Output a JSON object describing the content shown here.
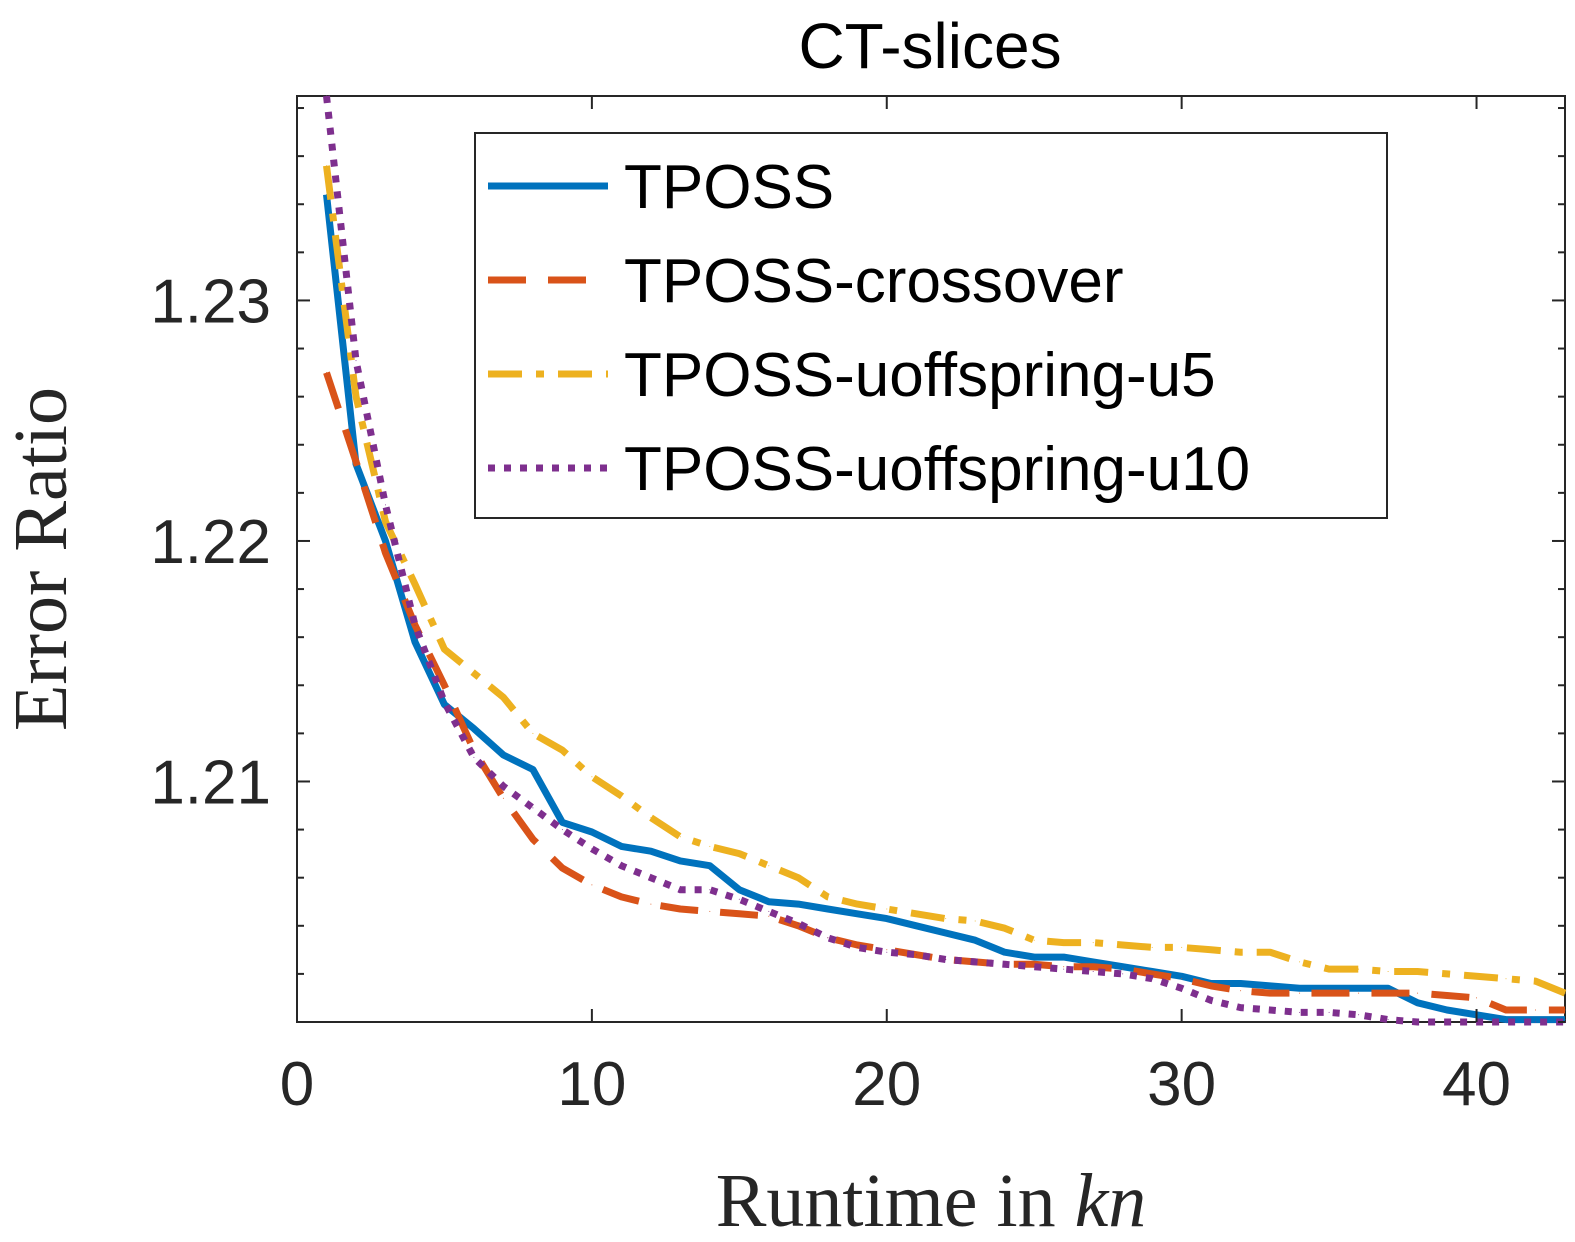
{
  "chart_data": {
    "type": "line",
    "title": "CT-slices",
    "xlabel": "Runtime in ",
    "xlabel_italic": "kn",
    "ylabel": "Error Ratio",
    "xlim": [
      0,
      43
    ],
    "ylim": [
      1.2,
      1.2385
    ],
    "xticks": [
      0,
      10,
      20,
      30,
      40
    ],
    "yticks": [
      1.21,
      1.22,
      1.23
    ],
    "ytick_labels": [
      "1.21",
      "1.22",
      "1.23"
    ],
    "grid": false,
    "legend_position": "top-right",
    "x": [
      1,
      2,
      3,
      4,
      5,
      6,
      7,
      8,
      9,
      10,
      11,
      12,
      13,
      14,
      15,
      16,
      17,
      18,
      19,
      20,
      21,
      22,
      23,
      24,
      25,
      26,
      27,
      28,
      29,
      30,
      31,
      32,
      33,
      34,
      35,
      36,
      37,
      38,
      39,
      40,
      41,
      42,
      43
    ],
    "series": [
      {
        "name": "TPOSS",
        "color": "#0072BD",
        "style": "solid",
        "values": [
          1.2344,
          1.2232,
          1.22,
          1.2158,
          1.2132,
          1.2122,
          1.2111,
          1.2105,
          1.2083,
          1.2079,
          1.2073,
          1.2071,
          1.2067,
          1.2065,
          1.2055,
          1.205,
          1.2049,
          1.2047,
          1.2045,
          1.2043,
          1.204,
          1.2037,
          1.2034,
          1.2029,
          1.2027,
          1.2027,
          1.2025,
          1.2023,
          1.2021,
          1.2019,
          1.2016,
          1.2016,
          1.2015,
          1.2014,
          1.2014,
          1.2014,
          1.2014,
          1.2008,
          1.2005,
          1.2003,
          1.2001,
          1.2001,
          1.2001
        ]
      },
      {
        "name": "TPOSS-crossover",
        "color": "#D95319",
        "style": "dashed",
        "values": [
          1.227,
          1.2233,
          1.2195,
          1.2165,
          1.214,
          1.2113,
          1.2093,
          1.2076,
          1.2064,
          1.2057,
          1.2052,
          1.2049,
          1.2047,
          1.2046,
          1.2045,
          1.2044,
          1.204,
          1.2035,
          1.2032,
          1.203,
          1.2028,
          1.2026,
          1.2025,
          1.2024,
          1.2024,
          1.2023,
          1.2023,
          1.2022,
          1.202,
          1.2018,
          1.2015,
          1.2013,
          1.2012,
          1.2012,
          1.2012,
          1.2012,
          1.2012,
          1.2012,
          1.2011,
          1.201,
          1.2005,
          1.2005,
          1.2005
        ]
      },
      {
        "name": "TPOSS-uoffspring-u5",
        "color": "#EDB120",
        "style": "dashdot",
        "values": [
          1.2356,
          1.226,
          1.2208,
          1.2182,
          1.2155,
          1.2145,
          1.2135,
          1.212,
          1.2113,
          1.2102,
          1.2094,
          1.2085,
          1.2077,
          1.2073,
          1.207,
          1.2065,
          1.206,
          1.2052,
          1.2049,
          1.2047,
          1.2045,
          1.2043,
          1.2042,
          1.2039,
          1.2034,
          1.2033,
          1.2033,
          1.2032,
          1.2031,
          1.2031,
          1.203,
          1.2029,
          1.2029,
          1.2025,
          1.2022,
          1.2022,
          1.2021,
          1.2021,
          1.202,
          1.2019,
          1.2018,
          1.2017,
          1.2012
        ]
      },
      {
        "name": "TPOSS-uoffspring-u10",
        "color": "#7E2F8E",
        "style": "dotted",
        "values": [
          1.2385,
          1.2275,
          1.2215,
          1.2165,
          1.2133,
          1.211,
          1.2098,
          1.2089,
          1.208,
          1.2072,
          1.2065,
          1.206,
          1.2055,
          1.2055,
          1.2051,
          1.2046,
          1.2041,
          1.2035,
          1.2031,
          1.2029,
          1.2028,
          1.2026,
          1.2025,
          1.2024,
          1.2023,
          1.2022,
          1.2021,
          1.202,
          1.2018,
          1.2014,
          1.2009,
          1.2006,
          1.2005,
          1.2004,
          1.2004,
          1.2003,
          1.2001,
          1.2,
          1.2,
          1.2,
          1.2,
          1.2,
          1.2
        ]
      }
    ]
  }
}
